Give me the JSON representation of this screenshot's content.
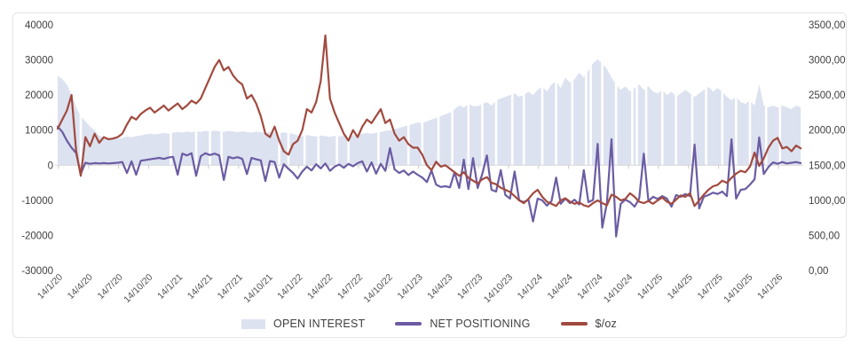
{
  "chart_data": {
    "type": "combo-area-line",
    "title": "",
    "x_axis": {
      "tick_labels": [
        "14/1/20",
        "14/4/20",
        "14/7/20",
        "14/10/20",
        "14/1/21",
        "14/4/21",
        "14/7/21",
        "14/10/21",
        "14/1/22",
        "14/4/22",
        "14/7/22",
        "14/10/22",
        "14/1/23",
        "14/4/23",
        "14/7/23",
        "14/10/23",
        "14/1/24",
        "14/4/24",
        "14/7/24",
        "14/10/24",
        "14/1/25",
        "14/4/25",
        "14/7/25",
        "14/10/25",
        "14/1/26"
      ],
      "start_label": "14/1/20",
      "end_label": "14/1/26",
      "weeks_per_point": 2
    },
    "left_axis": {
      "labels": [
        "40000",
        "30000",
        "20000",
        "10000",
        "0",
        "-10000",
        "-20000",
        "-30000"
      ],
      "values": [
        40000,
        30000,
        20000,
        10000,
        0,
        -10000,
        -20000,
        -30000
      ],
      "min": -30000,
      "max": 40000
    },
    "right_axis": {
      "labels": [
        "3500,00",
        "3000,00",
        "2500,00",
        "2000,00",
        "1500,00",
        "1000,00",
        "500,00",
        "0,00"
      ],
      "values": [
        3500,
        3000,
        2500,
        2000,
        1500,
        1000,
        500,
        0
      ],
      "min": 0,
      "max": 3500,
      "unit": "$/oz"
    },
    "grid": "zero-axis-line-only",
    "legend_position": "bottom",
    "series": [
      {
        "name": "OPEN INTEREST",
        "type": "area",
        "axis": "left",
        "color": "#dce2f0",
        "values": [
          25500,
          24500,
          23000,
          20000,
          16500,
          14000,
          12500,
          11000,
          10000,
          8500,
          7800,
          7600,
          7800,
          7500,
          7800,
          8200,
          8000,
          8300,
          8500,
          8800,
          9000,
          8800,
          9000,
          9200,
          9000,
          9300,
          9500,
          9300,
          9600,
          9400,
          9700,
          9500,
          9800,
          9600,
          9900,
          9700,
          9500,
          9800,
          9600,
          9400,
          9700,
          9500,
          9300,
          9600,
          9400,
          9200,
          9500,
          9300,
          9100,
          9400,
          9200,
          9000,
          8500,
          8300,
          8600,
          8400,
          8200,
          8500,
          8300,
          8100,
          8400,
          8200,
          8500,
          8700,
          8500,
          8800,
          9000,
          9200,
          9000,
          9300,
          9500,
          9800,
          10000,
          10300,
          10600,
          11000,
          11400,
          11800,
          12200,
          12000,
          12500,
          13000,
          13500,
          14000,
          14500,
          15000,
          16000,
          17000,
          16500,
          17500,
          16800,
          16800,
          17500,
          18000,
          17000,
          18500,
          19000,
          19500,
          20000,
          20500,
          19500,
          20000,
          21000,
          20000,
          21500,
          22500,
          21000,
          23000,
          24000,
          22000,
          25000,
          23500,
          24500,
          26400,
          25000,
          27000,
          29000,
          30200,
          29000,
          27500,
          25000,
          23000,
          21500,
          22500,
          21000,
          22000,
          23000,
          21500,
          22500,
          21000,
          20500,
          21500,
          20000,
          21000,
          19500,
          20500,
          21500,
          20500,
          19500,
          20500,
          21500,
          22300,
          21000,
          22000,
          21000,
          19500,
          18500,
          19500,
          18000,
          17500,
          18500,
          17000,
          23000,
          17000,
          16500,
          17000,
          16500,
          17000,
          16500,
          16000,
          17000,
          16500
        ]
      },
      {
        "name": "NET POSITIONING",
        "type": "line",
        "axis": "left",
        "color": "#6b5ca3",
        "values": [
          11000,
          9500,
          7000,
          5000,
          3500,
          -2500,
          700,
          400,
          600,
          500,
          600,
          500,
          600,
          700,
          900,
          -2200,
          1100,
          -2700,
          1300,
          1500,
          1700,
          1900,
          2100,
          1800,
          2200,
          2400,
          -2700,
          3300,
          2800,
          3400,
          -3000,
          2600,
          3400,
          2900,
          3300,
          2800,
          -4200,
          2400,
          2000,
          2300,
          1800,
          -2500,
          2100,
          1700,
          1400,
          -4500,
          1200,
          900,
          -3500,
          300,
          -1000,
          -2200,
          -3800,
          -1800,
          -400,
          -1500,
          300,
          -900,
          500,
          -1600,
          -400,
          200,
          -700,
          400,
          -300,
          600,
          1100,
          -1800,
          800,
          -2400,
          400,
          -1600,
          4900,
          -1200,
          -2200,
          -1500,
          -2800,
          -1800,
          -2700,
          -3500,
          -4800,
          -1500,
          -5500,
          -6200,
          -6000,
          -6300,
          -2000,
          -6500,
          1600,
          -6800,
          2000,
          -6500,
          -2500,
          2800,
          -7000,
          -7500,
          -1400,
          -8500,
          -9500,
          -1800,
          -10000,
          -10500,
          -9800,
          -16000,
          -9500,
          -10000,
          -11500,
          -10200,
          -3500,
          -11000,
          -9500,
          -10800,
          -9800,
          -11200,
          -1400,
          -10500,
          -9900,
          6100,
          -17800,
          -10800,
          7400,
          -20300,
          -11000,
          -9800,
          -10500,
          -11800,
          -9500,
          3300,
          -10200,
          -9000,
          -9600,
          -8800,
          -9500,
          -11800,
          -8500,
          -9000,
          -8200,
          -8800,
          5900,
          -12300,
          -9000,
          -8500,
          -7800,
          -8200,
          -7500,
          -8800,
          7400,
          -9500,
          -7000,
          -6800,
          -5500,
          -4000,
          7900,
          -2500,
          -500,
          800,
          400,
          900,
          500,
          700,
          900,
          600
        ]
      },
      {
        "name": "$/oz",
        "type": "line",
        "axis": "right",
        "color": "#a14a3f",
        "values": [
          2020,
          2150,
          2280,
          2500,
          1700,
          1350,
          1900,
          1770,
          1950,
          1820,
          1900,
          1870,
          1880,
          1900,
          1950,
          2080,
          2190,
          2150,
          2230,
          2280,
          2320,
          2250,
          2300,
          2350,
          2280,
          2330,
          2380,
          2300,
          2350,
          2420,
          2380,
          2450,
          2600,
          2750,
          2900,
          3000,
          2850,
          2900,
          2780,
          2700,
          2650,
          2450,
          2500,
          2380,
          2200,
          1950,
          1900,
          2050,
          1850,
          1700,
          1650,
          1800,
          1850,
          2000,
          2300,
          2250,
          2400,
          2700,
          3350,
          2450,
          2250,
          2100,
          1950,
          1850,
          2000,
          1900,
          2050,
          2150,
          2100,
          2200,
          2300,
          2100,
          2150,
          1950,
          1850,
          1900,
          1800,
          1750,
          1750,
          1650,
          1500,
          1430,
          1550,
          1480,
          1500,
          1450,
          1400,
          1350,
          1400,
          1320,
          1280,
          1240,
          1300,
          1330,
          1250,
          1230,
          1180,
          1150,
          1120,
          1060,
          1000,
          960,
          1020,
          1100,
          1150,
          1050,
          980,
          950,
          920,
          1000,
          1030,
          980,
          950,
          970,
          930,
          910,
          960,
          1000,
          960,
          930,
          1080,
          1050,
          1000,
          1020,
          1100,
          1050,
          980,
          960,
          990,
          950,
          1000,
          1040,
          980,
          950,
          1010,
          1070,
          1050,
          1100,
          920,
          1000,
          1080,
          1150,
          1200,
          1220,
          1280,
          1250,
          1320,
          1380,
          1420,
          1400,
          1480,
          1680,
          1490,
          1600,
          1750,
          1850,
          1890,
          1740,
          1760,
          1700,
          1780,
          1740
        ]
      }
    ],
    "open_interest_gap_weeks": [
      10,
      49,
      60,
      66,
      71,
      96,
      100,
      107,
      113,
      121,
      126,
      139,
      152,
      158,
      165,
      171,
      178,
      184,
      190,
      197,
      202,
      210,
      216,
      223,
      229,
      231,
      236,
      242,
      249,
      251,
      255,
      262,
      268,
      275,
      281,
      288,
      294,
      300,
      307,
      313
    ]
  }
}
